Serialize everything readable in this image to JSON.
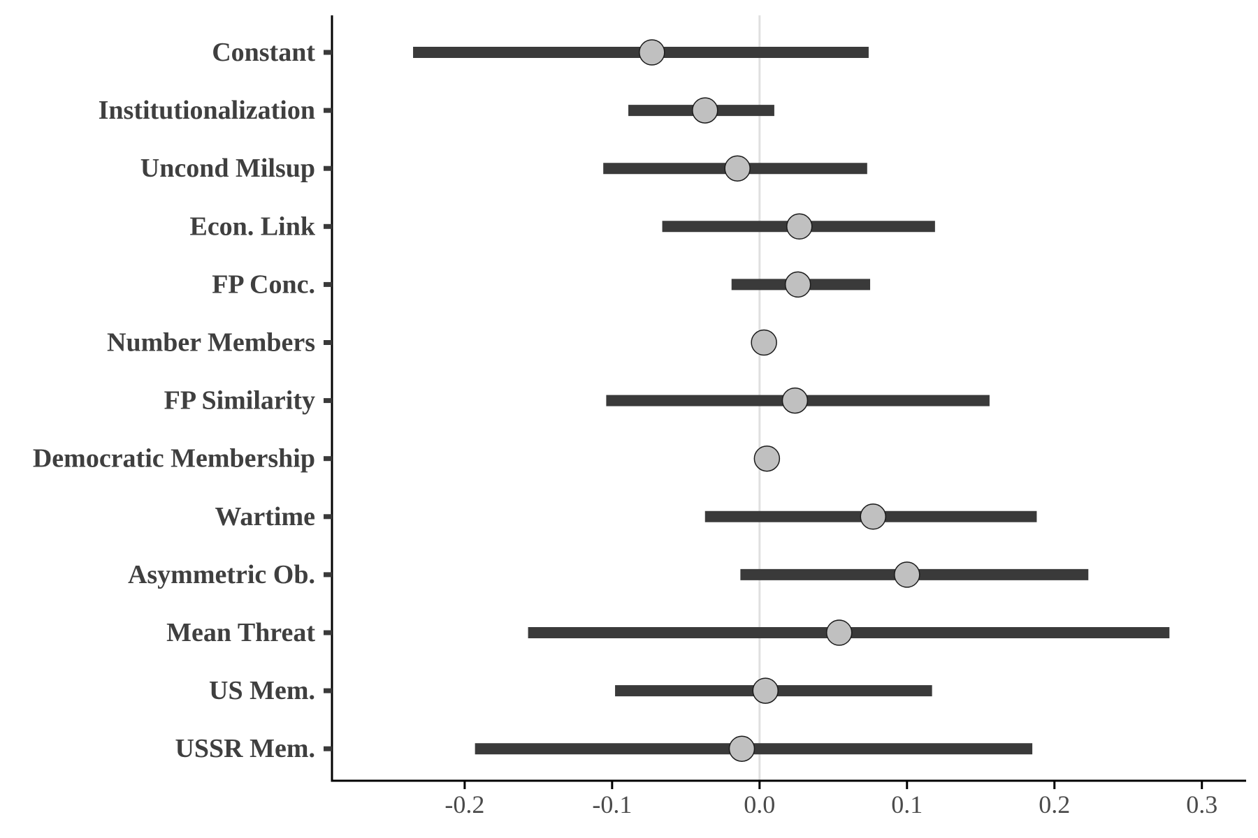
{
  "chart_data": {
    "type": "coefficient_plot",
    "title": "",
    "xlabel": "",
    "ylabel": "",
    "xlim": [
      -0.29,
      0.33
    ],
    "x_ticks": [
      -0.2,
      -0.1,
      0.0,
      0.1,
      0.2,
      0.3
    ],
    "x_tick_labels": [
      "-0.2",
      "-0.1",
      "0.0",
      "0.1",
      "0.2",
      "0.3"
    ],
    "reference_line": 0.0,
    "colors": {
      "interval": "#3a3a3a",
      "point_fill": "#c0c0c0",
      "point_stroke": "#1a1a1a",
      "reference_line": "#e0e0e0",
      "axis": "#000000"
    },
    "points": [
      {
        "label": "Constant",
        "estimate": -0.073,
        "lower": -0.235,
        "upper": 0.074
      },
      {
        "label": "Institutionalization",
        "estimate": -0.037,
        "lower": -0.089,
        "upper": 0.01
      },
      {
        "label": "Uncond Milsup",
        "estimate": -0.015,
        "lower": -0.106,
        "upper": 0.073
      },
      {
        "label": "Econ. Link",
        "estimate": 0.027,
        "lower": -0.066,
        "upper": 0.119
      },
      {
        "label": "FP Conc.",
        "estimate": 0.026,
        "lower": -0.019,
        "upper": 0.075
      },
      {
        "label": "Number Members",
        "estimate": 0.003,
        "lower": 0.003,
        "upper": 0.003
      },
      {
        "label": "FP Similarity",
        "estimate": 0.024,
        "lower": -0.104,
        "upper": 0.156
      },
      {
        "label": "Democratic Membership",
        "estimate": 0.005,
        "lower": 0.005,
        "upper": 0.005
      },
      {
        "label": "Wartime",
        "estimate": 0.077,
        "lower": -0.037,
        "upper": 0.188
      },
      {
        "label": "Asymmetric Ob.",
        "estimate": 0.1,
        "lower": -0.013,
        "upper": 0.223
      },
      {
        "label": "Mean Threat",
        "estimate": 0.054,
        "lower": -0.157,
        "upper": 0.278
      },
      {
        "label": "US Mem.",
        "estimate": 0.004,
        "lower": -0.098,
        "upper": 0.117
      },
      {
        "label": "USSR Mem.",
        "estimate": -0.012,
        "lower": -0.193,
        "upper": 0.185
      }
    ]
  }
}
